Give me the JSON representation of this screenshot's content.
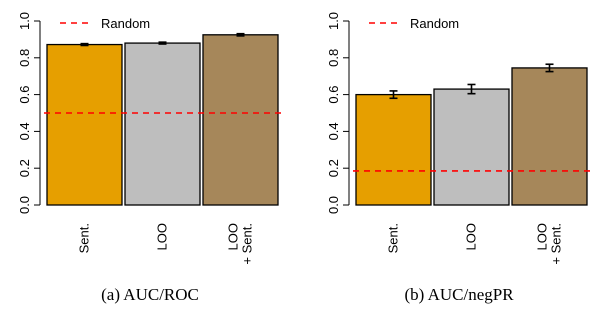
{
  "chart_data": [
    {
      "type": "bar",
      "caption": "(a)  AUC/ROC",
      "categories": [
        [
          "Sent."
        ],
        [
          "LOO"
        ],
        [
          "LOO",
          "+ Sent."
        ]
      ],
      "values": [
        0.872,
        0.88,
        0.925
      ],
      "errors": [
        0.005,
        0.005,
        0.006
      ],
      "colors": [
        "#E69F00",
        "#BEBEBE",
        "#A6875A"
      ],
      "random_line": 0.5,
      "random_label": "Random",
      "random_color": "#FF0000",
      "ylim": [
        0,
        1
      ],
      "yticks": [
        "0.0",
        "0.2",
        "0.4",
        "0.6",
        "0.8",
        "1.0"
      ],
      "legend_position": "top-left"
    },
    {
      "type": "bar",
      "caption": "(b)  AUC/negPR",
      "categories": [
        [
          "Sent."
        ],
        [
          "LOO"
        ],
        [
          "LOO",
          "+ Sent."
        ]
      ],
      "values": [
        0.6,
        0.63,
        0.745
      ],
      "errors": [
        0.02,
        0.025,
        0.02
      ],
      "colors": [
        "#E69F00",
        "#BEBEBE",
        "#A6875A"
      ],
      "random_line": 0.185,
      "random_label": "Random",
      "random_color": "#FF0000",
      "ylim": [
        0,
        1
      ],
      "yticks": [
        "0.0",
        "0.2",
        "0.4",
        "0.6",
        "0.8",
        "1.0"
      ],
      "legend_position": "top-left"
    }
  ]
}
